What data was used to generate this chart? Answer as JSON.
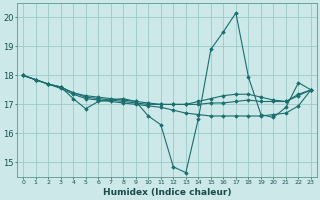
{
  "title": "",
  "xlabel": "Humidex (Indice chaleur)",
  "ylabel": "",
  "background_color": "#cce8e8",
  "grid_color": "#9dc8c8",
  "line_color": "#1a6e6e",
  "xlim": [
    -0.5,
    23.5
  ],
  "ylim": [
    14.5,
    20.5
  ],
  "yticks": [
    15,
    16,
    17,
    18,
    19,
    20
  ],
  "xticks": [
    0,
    1,
    2,
    3,
    4,
    5,
    6,
    7,
    8,
    9,
    10,
    11,
    12,
    13,
    14,
    15,
    16,
    17,
    18,
    19,
    20,
    21,
    22,
    23
  ],
  "series": [
    [
      18.0,
      17.85,
      17.7,
      17.6,
      17.2,
      16.85,
      17.1,
      17.15,
      17.2,
      17.1,
      16.6,
      16.3,
      14.85,
      14.65,
      16.5,
      18.9,
      19.5,
      20.15,
      17.95,
      16.65,
      16.55,
      16.9,
      17.75,
      17.5
    ],
    [
      18.0,
      17.85,
      17.7,
      17.6,
      17.4,
      17.3,
      17.25,
      17.2,
      17.15,
      17.1,
      17.05,
      17.0,
      17.0,
      17.0,
      17.1,
      17.2,
      17.3,
      17.35,
      17.35,
      17.25,
      17.15,
      17.1,
      17.35,
      17.5
    ],
    [
      18.0,
      17.85,
      17.7,
      17.55,
      17.35,
      17.2,
      17.15,
      17.1,
      17.05,
      17.0,
      16.95,
      16.9,
      16.8,
      16.7,
      16.65,
      16.6,
      16.6,
      16.6,
      16.6,
      16.6,
      16.65,
      16.7,
      16.95,
      17.5
    ],
    [
      18.0,
      17.85,
      17.7,
      17.6,
      17.4,
      17.25,
      17.2,
      17.15,
      17.1,
      17.05,
      17.0,
      17.0,
      17.0,
      17.0,
      17.0,
      17.05,
      17.05,
      17.1,
      17.15,
      17.1,
      17.1,
      17.1,
      17.3,
      17.5
    ]
  ]
}
